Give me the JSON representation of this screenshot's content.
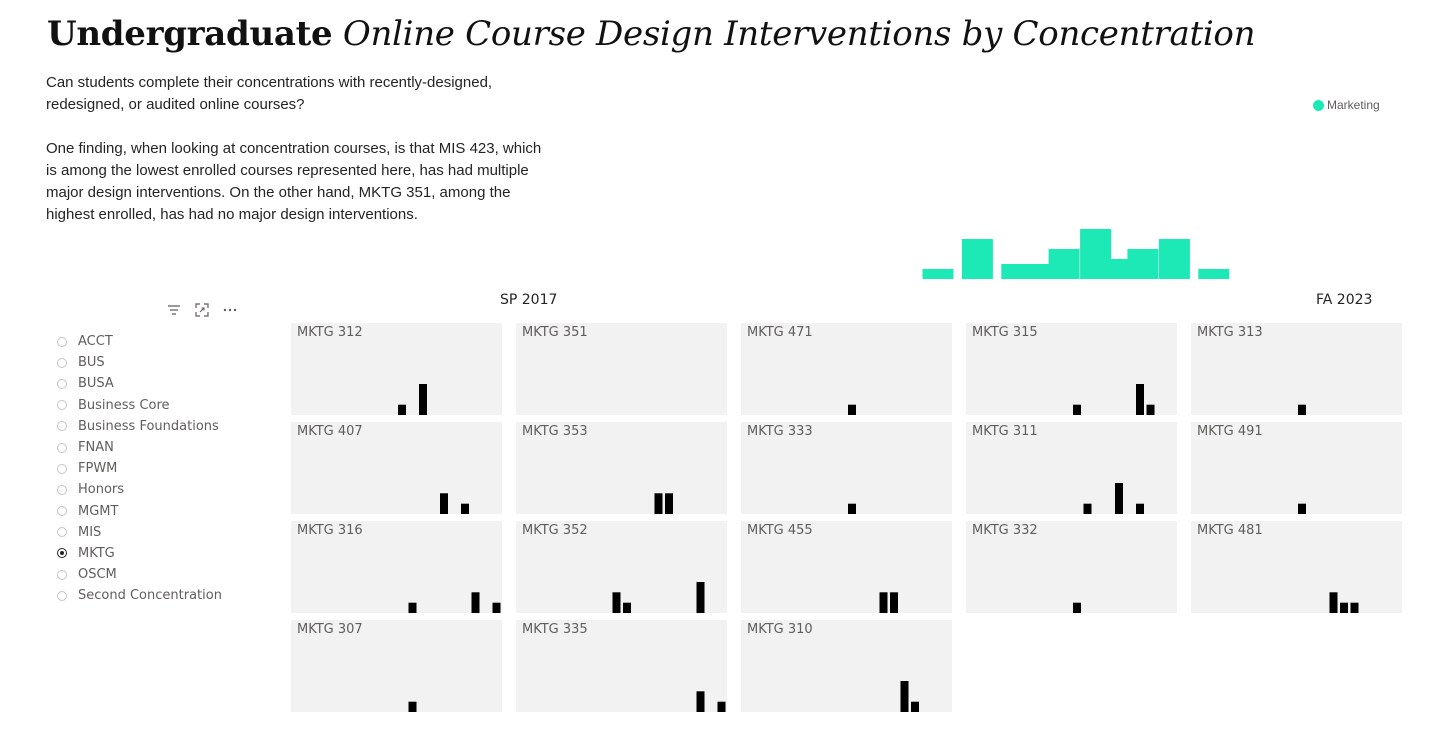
{
  "title": {
    "bold": "Undergraduate",
    "italic": "Online Course Design Interventions by Concentration"
  },
  "description": {
    "question": "Can students complete their concentrations with recently-designed, redesigned, or audited online courses?",
    "finding": "One finding, when looking at concentration courses, is that MIS 423, which is among the lowest enrolled courses represented here, has had multiple major design interventions. On the other hand, MKTG 351, among the highest enrolled, has had no major design interventions."
  },
  "axis": {
    "start": "SP 2017",
    "end": "FA 2023"
  },
  "colors": {
    "accent": "#1de9b6",
    "bar": "#000000",
    "panel": "#f2f2f2"
  },
  "toolbar": {
    "icons": [
      "filter-icon",
      "focus-mode-icon",
      "more-options-icon"
    ]
  },
  "slicer": {
    "selected": "MKTG",
    "items": [
      {
        "label": "ACCT",
        "selected": false
      },
      {
        "label": "BUS",
        "selected": false
      },
      {
        "label": "BUSA",
        "selected": false
      },
      {
        "label": "Business Core",
        "selected": false
      },
      {
        "label": "Business Foundations",
        "selected": false
      },
      {
        "label": "FNAN",
        "selected": false
      },
      {
        "label": "FPWM",
        "selected": false
      },
      {
        "label": "Honors",
        "selected": false
      },
      {
        "label": "MGMT",
        "selected": false
      },
      {
        "label": "MIS",
        "selected": false
      },
      {
        "label": "MKTG",
        "selected": true
      },
      {
        "label": "OSCM",
        "selected": false
      },
      {
        "label": "Second Concentration",
        "selected": false
      }
    ]
  },
  "chart_data": [
    {
      "type": "bar",
      "legend": [
        "Marketing"
      ],
      "x_range": [
        0,
        20
      ],
      "ylim": [
        0,
        5
      ],
      "values": [
        {
          "x": 13,
          "y": 1
        },
        {
          "x": 14,
          "y": 4
        },
        {
          "x": 15,
          "y": 1.5
        },
        {
          "x": 15.6,
          "y": 1.5
        },
        {
          "x": 16.2,
          "y": 3
        },
        {
          "x": 17,
          "y": 5
        },
        {
          "x": 17.6,
          "y": 2
        },
        {
          "x": 18.2,
          "y": 3
        },
        {
          "x": 19,
          "y": 4
        },
        {
          "x": 20,
          "y": 1
        }
      ]
    },
    {
      "type": "bar",
      "small_multiples": true,
      "x_range": [
        0,
        20
      ],
      "ylim": [
        0,
        3
      ],
      "panels": [
        {
          "title": "MKTG 312",
          "bars": [
            {
              "x": 10,
              "y": 1
            },
            {
              "x": 12,
              "y": 3
            }
          ]
        },
        {
          "title": "MKTG 351",
          "bars": []
        },
        {
          "title": "MKTG 471",
          "bars": [
            {
              "x": 10,
              "y": 1
            }
          ]
        },
        {
          "title": "MKTG 315",
          "bars": [
            {
              "x": 10,
              "y": 1
            },
            {
              "x": 16,
              "y": 3
            },
            {
              "x": 17,
              "y": 1
            }
          ]
        },
        {
          "title": "MKTG 313",
          "bars": [
            {
              "x": 10,
              "y": 1
            }
          ]
        },
        {
          "title": "MKTG 407",
          "bars": [
            {
              "x": 14,
              "y": 2
            },
            {
              "x": 16,
              "y": 1
            }
          ]
        },
        {
          "title": "MKTG 353",
          "bars": [
            {
              "x": 13,
              "y": 2
            },
            {
              "x": 14,
              "y": 2
            }
          ]
        },
        {
          "title": "MKTG 333",
          "bars": [
            {
              "x": 10,
              "y": 1
            }
          ]
        },
        {
          "title": "MKTG 311",
          "bars": [
            {
              "x": 11,
              "y": 1
            },
            {
              "x": 14,
              "y": 3
            },
            {
              "x": 16,
              "y": 1
            }
          ]
        },
        {
          "title": "MKTG 491",
          "bars": [
            {
              "x": 10,
              "y": 1
            }
          ]
        },
        {
          "title": "MKTG 316",
          "bars": [
            {
              "x": 11,
              "y": 1
            },
            {
              "x": 17,
              "y": 2
            },
            {
              "x": 19,
              "y": 1
            }
          ]
        },
        {
          "title": "MKTG 352",
          "bars": [
            {
              "x": 9,
              "y": 2
            },
            {
              "x": 10,
              "y": 1
            },
            {
              "x": 17,
              "y": 3
            }
          ]
        },
        {
          "title": "MKTG 455",
          "bars": [
            {
              "x": 13,
              "y": 2
            },
            {
              "x": 14,
              "y": 2
            }
          ]
        },
        {
          "title": "MKTG 332",
          "bars": [
            {
              "x": 10,
              "y": 1
            }
          ]
        },
        {
          "title": "MKTG 481",
          "bars": [
            {
              "x": 13,
              "y": 2
            },
            {
              "x": 14,
              "y": 1
            },
            {
              "x": 15,
              "y": 1
            }
          ]
        },
        {
          "title": "MKTG 307",
          "bars": [
            {
              "x": 11,
              "y": 1
            }
          ]
        },
        {
          "title": "MKTG 335",
          "bars": [
            {
              "x": 17,
              "y": 2
            },
            {
              "x": 19,
              "y": 1
            }
          ]
        },
        {
          "title": "MKTG 310",
          "bars": [
            {
              "x": 15,
              "y": 3
            },
            {
              "x": 16,
              "y": 1
            }
          ]
        }
      ]
    }
  ]
}
